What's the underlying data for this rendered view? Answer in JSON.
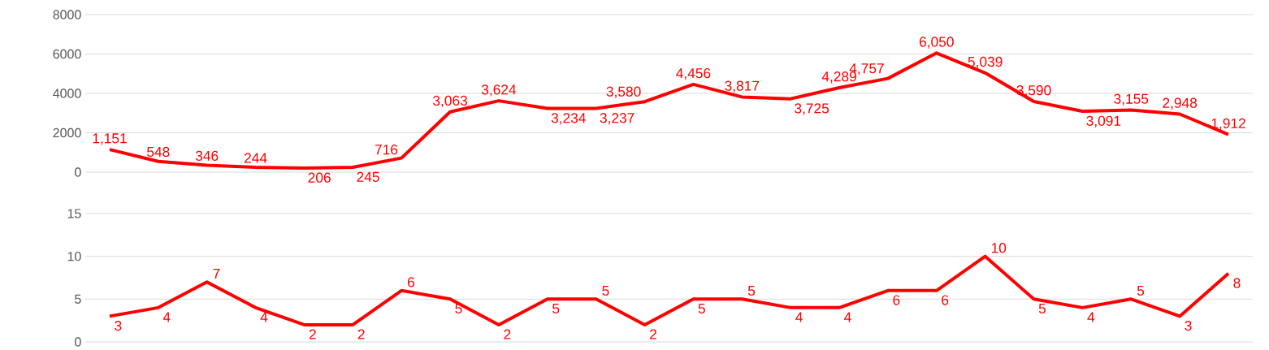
{
  "chart_data": [
    {
      "type": "line",
      "categories": [
        null,
        null,
        null,
        null,
        null,
        null,
        null,
        null,
        null,
        null,
        null,
        null,
        null,
        null,
        null,
        null,
        null,
        null,
        null,
        null,
        null,
        null,
        null,
        null
      ],
      "series": [
        {
          "color": "#ff0000",
          "values": [
            1151,
            548,
            346,
            244,
            206,
            245,
            716,
            3063,
            3624,
            3234,
            3237,
            3580,
            4456,
            3817,
            3725,
            4289,
            4757,
            6050,
            5039,
            3590,
            3091,
            3155,
            2948,
            1912
          ],
          "value_labels": [
            "1,151",
            "548",
            "346",
            "244",
            "206",
            "245",
            "716",
            "3,063",
            "3,624",
            "3,234",
            "3,237",
            "3,580",
            "4,456",
            "3,817",
            "3,725",
            "4,289",
            "4,757",
            "6,050",
            "5,039",
            "3,590",
            "3,091",
            "3,155",
            "2,948",
            "1,912"
          ]
        }
      ],
      "ylim": [
        0,
        8000
      ],
      "yticks": [
        0,
        2000,
        4000,
        6000,
        8000
      ],
      "grid": "y",
      "tick_labels": "y"
    },
    {
      "type": "line",
      "categories": [
        null,
        null,
        null,
        null,
        null,
        null,
        null,
        null,
        null,
        null,
        null,
        null,
        null,
        null,
        null,
        null,
        null,
        null,
        null,
        null,
        null,
        null,
        null,
        null
      ],
      "series": [
        {
          "color": "#ff0000",
          "values": [
            3,
            4,
            7,
            4,
            2,
            2,
            6,
            5,
            2,
            5,
            5,
            2,
            5,
            5,
            4,
            4,
            6,
            6,
            10,
            5,
            4,
            5,
            3,
            8
          ],
          "value_labels": [
            "3",
            "4",
            "7",
            "4",
            "2",
            "2",
            "6",
            "5",
            "2",
            "5",
            "5",
            "2",
            "5",
            "5",
            "4",
            "4",
            "6",
            "6",
            "10",
            "5",
            "4",
            "5",
            "3",
            "8"
          ]
        }
      ],
      "ylim": [
        0,
        15
      ],
      "yticks": [
        0,
        5,
        10,
        15
      ],
      "grid": "y",
      "tick_labels": "y"
    }
  ]
}
